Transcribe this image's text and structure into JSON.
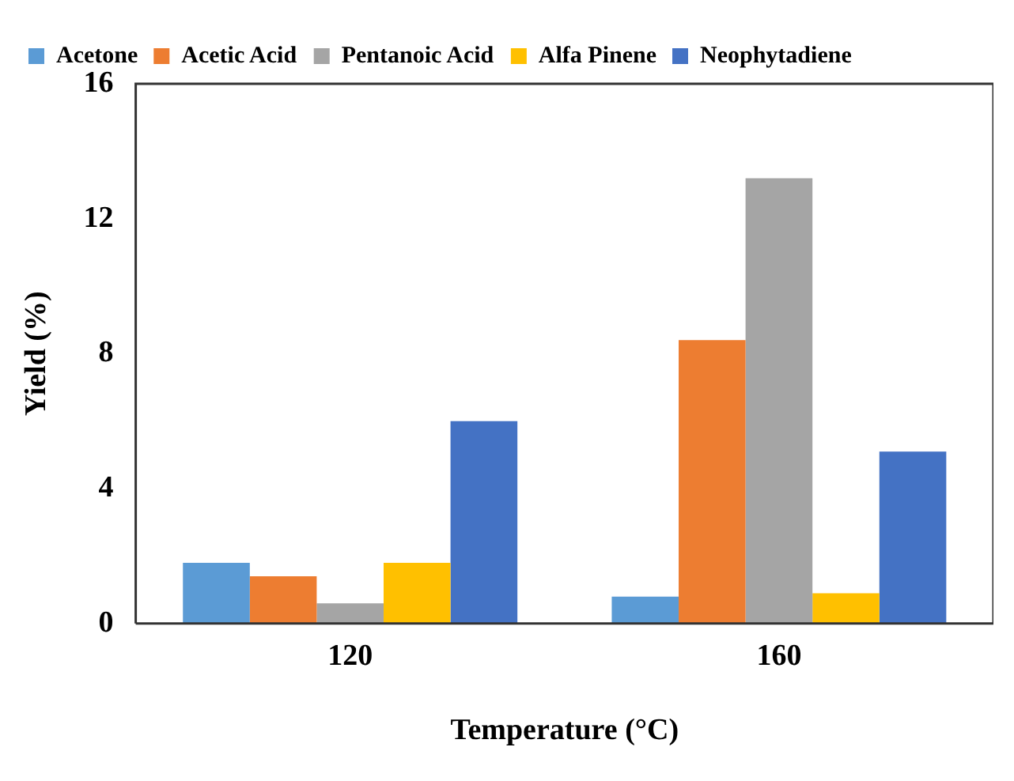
{
  "chart_data": {
    "type": "bar",
    "xlabel": "Temperature (°C)",
    "ylabel": "Yield (%)",
    "categories": [
      "120",
      "160"
    ],
    "series": [
      {
        "name": "Acetone",
        "color": "#5b9bd5",
        "values": [
          1.8,
          0.8
        ]
      },
      {
        "name": "Acetic Acid",
        "color": "#ed7d31",
        "values": [
          1.4,
          8.4
        ]
      },
      {
        "name": "Pentanoic Acid",
        "color": "#a5a5a5",
        "values": [
          0.6,
          13.2
        ]
      },
      {
        "name": "Alfa Pinene",
        "color": "#ffc000",
        "values": [
          1.8,
          0.9
        ]
      },
      {
        "name": "Neophytadiene",
        "color": "#4472c4",
        "values": [
          6.0,
          5.1
        ]
      }
    ],
    "ylim": [
      0,
      16
    ],
    "yticks": [
      0,
      4,
      8,
      12,
      16
    ],
    "grid": false,
    "legend": "top left"
  }
}
